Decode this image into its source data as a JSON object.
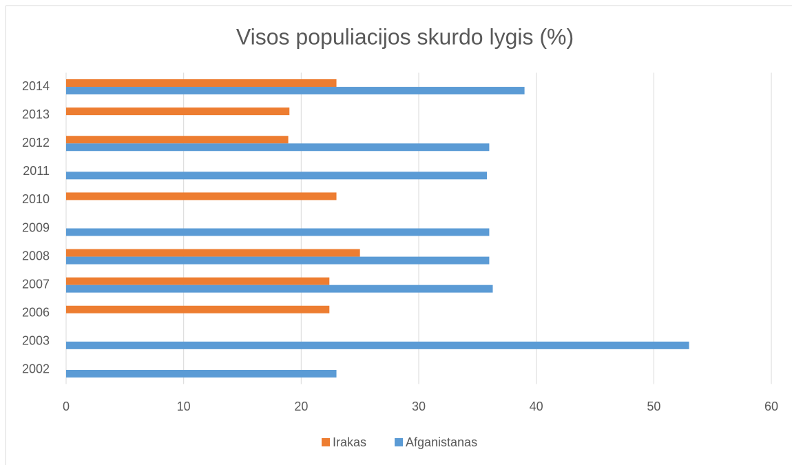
{
  "chart_data": {
    "type": "hbar",
    "title": "Visos populiacijos skurdo lygis (%)",
    "categories": [
      "2002",
      "2003",
      "2006",
      "2007",
      "2008",
      "2009",
      "2010",
      "2011",
      "2012",
      "2013",
      "2014"
    ],
    "series": [
      {
        "name": "Irakas",
        "color": "#ed7d31",
        "values": [
          null,
          null,
          22.4,
          22.4,
          25,
          null,
          23,
          null,
          18.9,
          19,
          23
        ]
      },
      {
        "name": "Afganistanas",
        "color": "#5b9bd5",
        "values": [
          23,
          53,
          null,
          36.3,
          36,
          36,
          null,
          35.8,
          36,
          null,
          39
        ]
      }
    ],
    "xlim": [
      0,
      60
    ],
    "xticks": [
      0,
      10,
      20,
      30,
      40,
      50,
      60
    ],
    "grid": true,
    "legend": "bottom"
  }
}
